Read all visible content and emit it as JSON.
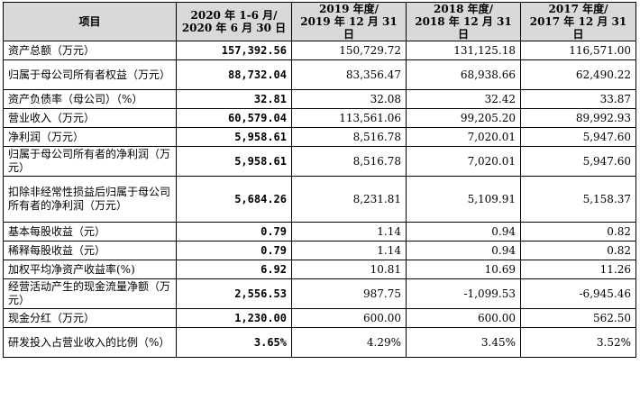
{
  "header": {
    "item": "项目",
    "col1": [
      "2020 年 1-6 月/",
      "2020 年 6 月 30 日"
    ],
    "col2": [
      "2019 年度/",
      "2019 年 12 月 31 日"
    ],
    "col3": [
      "2018 年度/",
      "2018 年 12 月 31 日"
    ],
    "col4": [
      "2017 年度/",
      "2017 年 12 月 31 日"
    ]
  },
  "rows": [
    {
      "label": "资产总额（万元）",
      "v2020": "157,392.56",
      "v2019": "150,729.72",
      "v2018": "131,125.18",
      "v2017": "116,571.00",
      "h": "h1"
    },
    {
      "label": "归属于母公司所有者权益（万元）",
      "v2020": "88,732.04",
      "v2019": "83,356.47",
      "v2018": "68,938.66",
      "v2017": "62,490.22",
      "h": "h2"
    },
    {
      "label": "资产负债率（母公司）（%）",
      "v2020": "32.81",
      "v2019": "32.08",
      "v2018": "32.42",
      "v2017": "33.87",
      "h": "h1"
    },
    {
      "label": "营业收入（万元）",
      "v2020": "60,579.04",
      "v2019": "113,561.06",
      "v2018": "99,205.20",
      "v2017": "89,992.93",
      "h": "h1"
    },
    {
      "label": "净利润（万元）",
      "v2020": "5,958.61",
      "v2019": "8,516.78",
      "v2018": "7,020.01",
      "v2017": "5,947.60",
      "h": "h1"
    },
    {
      "label": "归属于母公司所有者的净利润（万元）",
      "v2020": "5,958.61",
      "v2019": "8,516.78",
      "v2018": "7,020.01",
      "v2017": "5,947.60",
      "h": "h2"
    },
    {
      "label": "扣除非经常性损益后归属于母公司所有者的净利润（万元）",
      "v2020": "5,684.26",
      "v2019": "8,231.81",
      "v2018": "5,109.91",
      "v2017": "5,158.37",
      "h": "h3"
    },
    {
      "label": "基本每股收益（元）",
      "v2020": "0.79",
      "v2019": "1.14",
      "v2018": "0.94",
      "v2017": "0.82",
      "h": "h1"
    },
    {
      "label": "稀释每股收益（元）",
      "v2020": "0.79",
      "v2019": "1.14",
      "v2018": "0.94",
      "v2017": "0.82",
      "h": "h1"
    },
    {
      "label": "加权平均净资产收益率(%)",
      "v2020": "6.92",
      "v2019": "10.81",
      "v2018": "10.69",
      "v2017": "11.26",
      "h": "h1"
    },
    {
      "label": "经营活动产生的现金流量净额（万元）",
      "v2020": "2,556.53",
      "v2019": "987.75",
      "v2018": "-1,099.53",
      "v2017": "-6,945.46",
      "h": "h2"
    },
    {
      "label": "现金分红（万元）",
      "v2020": "1,230.00",
      "v2019": "600.00",
      "v2018": "600.00",
      "v2017": "562.50",
      "h": "h1"
    },
    {
      "label": "研发投入占营业收入的比例（%）",
      "v2020": "3.65%",
      "v2019": "4.29%",
      "v2018": "3.45%",
      "v2017": "3.52%",
      "h": "h2"
    }
  ]
}
